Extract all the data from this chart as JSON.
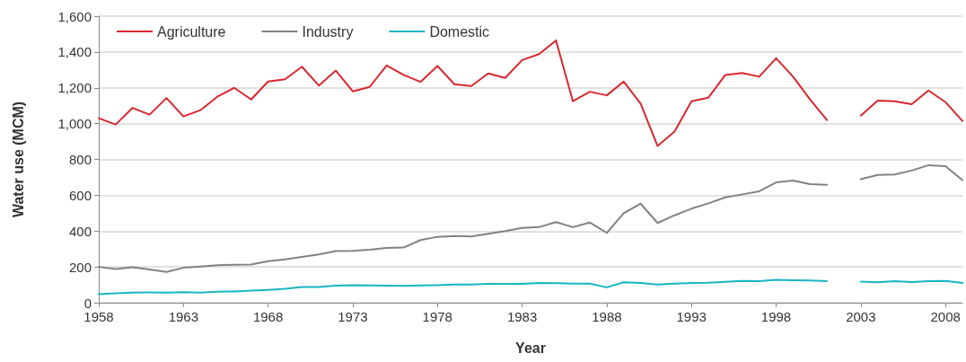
{
  "chart_data": {
    "type": "line",
    "xlabel": "Year",
    "ylabel": "Water use (MCM)",
    "x": [
      1958,
      1959,
      1960,
      1961,
      1962,
      1963,
      1964,
      1965,
      1966,
      1967,
      1968,
      1969,
      1970,
      1971,
      1972,
      1973,
      1974,
      1975,
      1976,
      1977,
      1978,
      1979,
      1980,
      1981,
      1982,
      1983,
      1984,
      1985,
      1986,
      1987,
      1988,
      1989,
      1990,
      1991,
      1992,
      1993,
      1994,
      1995,
      1996,
      1997,
      1998,
      1999,
      2000,
      2001,
      2002,
      2003,
      2004,
      2005,
      2006,
      2007,
      2008,
      2009
    ],
    "series": [
      {
        "name": "Agriculture",
        "color": "#d7282f",
        "values": [
          1030,
          995,
          1088,
          1050,
          1143,
          1040,
          1075,
          1150,
          1200,
          1135,
          1235,
          1248,
          1318,
          1212,
          1296,
          1180,
          1205,
          1325,
          1272,
          1233,
          1322,
          1220,
          1210,
          1280,
          1255,
          1355,
          1388,
          1465,
          1125,
          1178,
          1158,
          1235,
          1112,
          875,
          955,
          1125,
          1145,
          1272,
          1283,
          1262,
          1365,
          1262,
          1135,
          1020,
          null,
          1045,
          1128,
          1125,
          1108,
          1185,
          1120,
          1015
        ]
      },
      {
        "name": "Industry",
        "color": "#7f847f",
        "values": [
          200,
          188,
          198,
          185,
          172,
          195,
          202,
          210,
          212,
          213,
          232,
          242,
          256,
          270,
          288,
          290,
          296,
          306,
          308,
          350,
          368,
          372,
          370,
          385,
          400,
          418,
          422,
          450,
          422,
          448,
          390,
          500,
          553,
          445,
          488,
          525,
          555,
          588,
          605,
          622,
          672,
          682,
          662,
          658,
          null,
          690,
          713,
          716,
          738,
          768,
          762,
          685
        ]
      },
      {
        "name": "Domestic",
        "color": "#17b6c2",
        "values": [
          48,
          53,
          57,
          58,
          57,
          59,
          57,
          62,
          63,
          68,
          72,
          78,
          88,
          88,
          95,
          98,
          97,
          95,
          94,
          96,
          98,
          102,
          101,
          105,
          105,
          105,
          110,
          109,
          106,
          107,
          86,
          114,
          110,
          102,
          106,
          110,
          112,
          117,
          122,
          120,
          128,
          126,
          124,
          120,
          null,
          118,
          114,
          120,
          115,
          120,
          122,
          110
        ]
      }
    ],
    "xlim": [
      1958,
      2009
    ],
    "xticks": [
      1958,
      1963,
      1968,
      1973,
      1978,
      1983,
      1988,
      1993,
      1998,
      2003,
      2008
    ],
    "ylim": [
      0,
      1600
    ],
    "yticks": [
      0,
      {
        "value": 200,
        "label": "200"
      },
      {
        "value": 400,
        "label": "400"
      },
      {
        "value": 600,
        "label": "600"
      },
      {
        "value": 800,
        "label": "800"
      },
      {
        "value": 1000,
        "label": "1,000"
      },
      {
        "value": 1200,
        "label": "1,200"
      },
      {
        "value": 1400,
        "label": "1,400"
      },
      {
        "value": 1600,
        "label": "1,600"
      }
    ],
    "grid": "y",
    "legend": "top left",
    "marker": "none",
    "line_style": "solid"
  }
}
